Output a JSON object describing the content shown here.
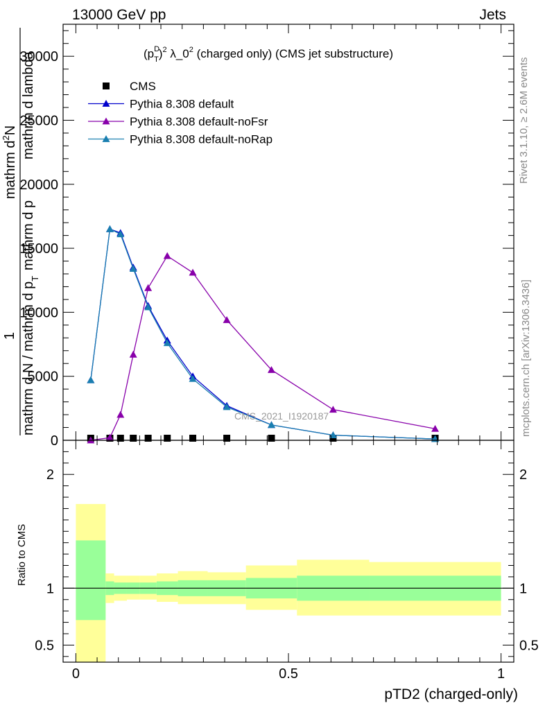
{
  "header": {
    "energy_label": "13000 GeV pp",
    "process_label": "Jets",
    "rivet_label": "Rivet 3.1.10, ≥ 2.6M events",
    "mcplots_label": "mcplots.cern.ch [arXiv:1306.3436]"
  },
  "chart_data": {
    "type": "line",
    "title": "(p_T^D)^2 λ_0^2 (charged only) (CMS jet substructure)",
    "title_parts": {
      "prefix": "(p",
      "sup_d": "D",
      "sub_t": "T",
      "close": ")",
      "sup_2": "2",
      "lambda": " λ_0",
      "sup_2b": "2",
      "suffix": " (charged only) (CMS jet substructure)"
    },
    "watermark": "CMS_2021_I1920187",
    "xlabel": "pTD2 (charged-only)",
    "ylabel_main": {
      "numerator": "1",
      "denominator_line1": "mathrm d N / mathrm d p",
      "denominator_sub": "T",
      "denominator_line2": "mathrm d p",
      "denominator_line3": "mathrm d lambda",
      "numerator_line": "mathrm d",
      "numerator_sup": "2",
      "numerator_N": "N"
    },
    "ylabel_ratio": "Ratio to CMS",
    "xlim": [
      -0.03,
      1.03
    ],
    "ylim_main": [
      0,
      32500
    ],
    "ylim_ratio": [
      0.35,
      2.3
    ],
    "x_ticks": [
      "0",
      "0.5",
      "1"
    ],
    "y_ticks_main": [
      "0",
      "5000",
      "10000",
      "15000",
      "20000",
      "25000",
      "30000"
    ],
    "y_ticks_ratio": [
      "0.5",
      "1",
      "2"
    ],
    "legend_position": "top-left",
    "series": [
      {
        "name": "CMS",
        "color": "#000000",
        "marker": "square",
        "x": [
          0.035,
          0.08,
          0.105,
          0.135,
          0.17,
          0.215,
          0.275,
          0.355,
          0.46,
          0.605,
          0.845
        ],
        "y": [
          0,
          0,
          0,
          0,
          0,
          0,
          0,
          0,
          0,
          0,
          0
        ]
      },
      {
        "name": "Pythia 8.308 default",
        "color": "#0000cc",
        "marker": "triangle",
        "x": [
          0.035,
          0.08,
          0.105,
          0.135,
          0.17,
          0.215,
          0.275,
          0.355,
          0.46,
          0.605,
          0.845
        ],
        "y": [
          4700,
          16500,
          16200,
          13500,
          10500,
          7800,
          5000,
          2700,
          1200,
          400,
          100
        ]
      },
      {
        "name": "Pythia 8.308 default-noFsr",
        "color": "#8800aa",
        "marker": "triangle",
        "x": [
          0.035,
          0.08,
          0.105,
          0.135,
          0.17,
          0.215,
          0.275,
          0.355,
          0.46,
          0.605,
          0.845
        ],
        "y": [
          0,
          200,
          2000,
          6700,
          11900,
          14400,
          13100,
          9400,
          5500,
          2400,
          900
        ]
      },
      {
        "name": "Pythia 8.308 default-noRap",
        "color": "#1a7fb0",
        "marker": "triangle",
        "x": [
          0.035,
          0.08,
          0.105,
          0.135,
          0.17,
          0.215,
          0.275,
          0.355,
          0.46,
          0.605,
          0.845
        ],
        "y": [
          4700,
          16500,
          16100,
          13400,
          10400,
          7600,
          4800,
          2600,
          1200,
          400,
          100
        ]
      }
    ],
    "ratio_bands": {
      "edges": [
        0.0,
        0.07,
        0.09,
        0.12,
        0.15,
        0.19,
        0.24,
        0.31,
        0.4,
        0.52,
        0.69,
        1.0
      ],
      "green_low": [
        0.72,
        0.94,
        0.95,
        0.95,
        0.95,
        0.94,
        0.93,
        0.93,
        0.91,
        0.89,
        0.89
      ],
      "green_high": [
        1.42,
        1.06,
        1.05,
        1.05,
        1.05,
        1.06,
        1.07,
        1.07,
        1.09,
        1.11,
        1.11
      ],
      "yellow_low": [
        0.3,
        0.87,
        0.89,
        0.9,
        0.9,
        0.88,
        0.86,
        0.86,
        0.81,
        0.76,
        0.76
      ],
      "yellow_high": [
        1.74,
        1.13,
        1.11,
        1.11,
        1.11,
        1.13,
        1.15,
        1.14,
        1.2,
        1.25,
        1.23
      ],
      "green_color": "#99ff99",
      "yellow_color": "#ffff99"
    }
  }
}
